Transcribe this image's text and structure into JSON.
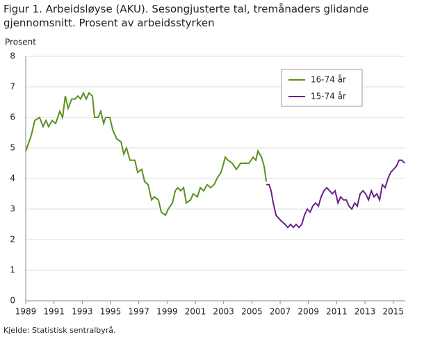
{
  "chart_data": {
    "type": "line",
    "title": "Figur 1. Arbeidsløyse (AKU). Sesongjusterte tal, tremånaders glidande gjennomsnitt. Prosent av arbeidsstyrken",
    "ylabel": "Prosent",
    "source": "Kjelde: Statistisk sentralbyrå.",
    "xlim": [
      1989,
      2015.85
    ],
    "xticks": [
      1989,
      1991,
      1993,
      1995,
      1997,
      1999,
      2001,
      2003,
      2005,
      2007,
      2009,
      2011,
      2013,
      2015
    ],
    "ylim": [
      0,
      8
    ],
    "yticks": [
      0,
      1,
      2,
      3,
      4,
      5,
      6,
      7,
      8
    ],
    "grid": true,
    "legend": "top-right",
    "series": [
      {
        "name": "16-74 år",
        "color": "#5a8f1e",
        "x": [
          1989.0,
          1989.39,
          1989.64,
          1989.98,
          1990.23,
          1990.43,
          1990.62,
          1990.87,
          1991.12,
          1991.41,
          1991.61,
          1991.8,
          1992.0,
          1992.25,
          1992.49,
          1992.69,
          1992.89,
          1993.08,
          1993.28,
          1993.48,
          1993.72,
          1993.87,
          1994.12,
          1994.31,
          1994.51,
          1994.66,
          1994.95,
          1995.15,
          1995.44,
          1995.74,
          1995.94,
          1996.13,
          1996.38,
          1996.72,
          1996.92,
          1997.21,
          1997.41,
          1997.66,
          1997.9,
          1998.1,
          1998.39,
          1998.59,
          1998.89,
          1999.08,
          1999.38,
          1999.58,
          1999.77,
          1999.97,
          2000.17,
          2000.36,
          2000.66,
          2000.85,
          2001.15,
          2001.35,
          2001.59,
          2001.84,
          2002.08,
          2002.33,
          2002.53,
          2002.82,
          2003.12,
          2003.31,
          2003.61,
          2003.9,
          2004.2,
          2004.49,
          2004.79,
          2005.09,
          2005.28,
          2005.43,
          2005.68,
          2005.87,
          2006.02
        ],
        "values": [
          4.9,
          5.4,
          5.9,
          6.0,
          5.7,
          5.9,
          5.7,
          5.9,
          5.8,
          6.2,
          6.0,
          6.7,
          6.3,
          6.6,
          6.6,
          6.7,
          6.6,
          6.8,
          6.6,
          6.8,
          6.7,
          6.0,
          6.0,
          6.2,
          5.8,
          6.0,
          6.0,
          5.6,
          5.3,
          5.2,
          4.8,
          5.0,
          4.6,
          4.6,
          4.2,
          4.3,
          3.9,
          3.8,
          3.3,
          3.4,
          3.3,
          2.9,
          2.8,
          3.0,
          3.2,
          3.6,
          3.7,
          3.6,
          3.7,
          3.2,
          3.3,
          3.5,
          3.4,
          3.7,
          3.6,
          3.8,
          3.7,
          3.8,
          4.0,
          4.2,
          4.7,
          4.6,
          4.5,
          4.3,
          4.5,
          4.5,
          4.5,
          4.7,
          4.6,
          4.9,
          4.7,
          4.4,
          3.9
        ]
      },
      {
        "name": "15-74 år",
        "color": "#6b1f8c",
        "x": [
          2006.02,
          2006.22,
          2006.36,
          2006.51,
          2006.71,
          2006.9,
          2007.1,
          2007.35,
          2007.54,
          2007.74,
          2007.94,
          2008.13,
          2008.33,
          2008.53,
          2008.72,
          2008.92,
          2009.12,
          2009.31,
          2009.51,
          2009.71,
          2009.9,
          2010.1,
          2010.3,
          2010.5,
          2010.69,
          2010.89,
          2011.09,
          2011.28,
          2011.48,
          2011.68,
          2011.87,
          2012.07,
          2012.27,
          2012.46,
          2012.66,
          2012.86,
          2013.05,
          2013.25,
          2013.45,
          2013.64,
          2013.84,
          2014.04,
          2014.23,
          2014.43,
          2014.63,
          2014.82,
          2015.02,
          2015.22,
          2015.41,
          2015.61,
          2015.81
        ],
        "values": [
          3.8,
          3.8,
          3.6,
          3.2,
          2.8,
          2.7,
          2.6,
          2.5,
          2.4,
          2.5,
          2.4,
          2.5,
          2.4,
          2.5,
          2.8,
          3.0,
          2.9,
          3.1,
          3.2,
          3.1,
          3.4,
          3.6,
          3.7,
          3.6,
          3.5,
          3.6,
          3.2,
          3.4,
          3.3,
          3.3,
          3.1,
          3.0,
          3.2,
          3.1,
          3.5,
          3.6,
          3.5,
          3.3,
          3.6,
          3.4,
          3.5,
          3.3,
          3.8,
          3.7,
          4.0,
          4.2,
          4.3,
          4.4,
          4.6,
          4.6,
          4.5
        ]
      }
    ]
  }
}
